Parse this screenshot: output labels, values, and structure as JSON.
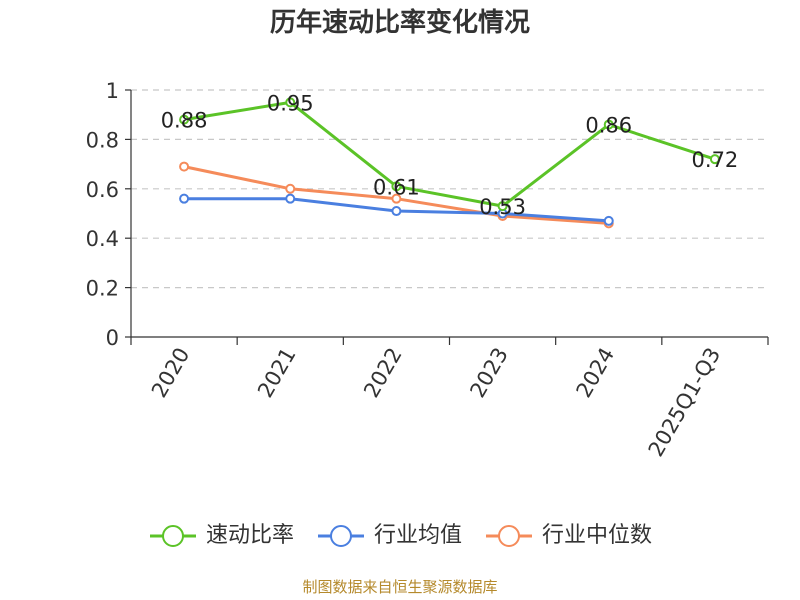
{
  "chart_data": {
    "type": "line",
    "title": "历年速动比率变化情况",
    "categories": [
      "2020",
      "2021",
      "2022",
      "2023",
      "2024",
      "2025Q1-Q3"
    ],
    "series": [
      {
        "name": "速动比率",
        "color": "#5bc327",
        "values": [
          0.88,
          0.95,
          0.61,
          0.53,
          0.86,
          0.72
        ],
        "show_labels": true
      },
      {
        "name": "行业均值",
        "color": "#4a7fe0",
        "values": [
          0.56,
          0.56,
          0.51,
          0.5,
          0.47,
          null
        ],
        "show_labels": false
      },
      {
        "name": "行业中位数",
        "color": "#f58b5a",
        "values": [
          0.69,
          0.6,
          0.56,
          0.49,
          0.46,
          null
        ],
        "show_labels": false
      }
    ],
    "ylim": [
      0,
      1
    ],
    "yticks": [
      0,
      0.2,
      0.4,
      0.6,
      0.8,
      1
    ],
    "ytick_labels": [
      "0",
      "0.2",
      "0.4",
      "0.6",
      "0.8",
      "1"
    ],
    "grid": true,
    "legend_position": "bottom",
    "xtick_rotation": "rotated"
  },
  "footer": {
    "source": "制图数据来自恒生聚源数据库"
  }
}
